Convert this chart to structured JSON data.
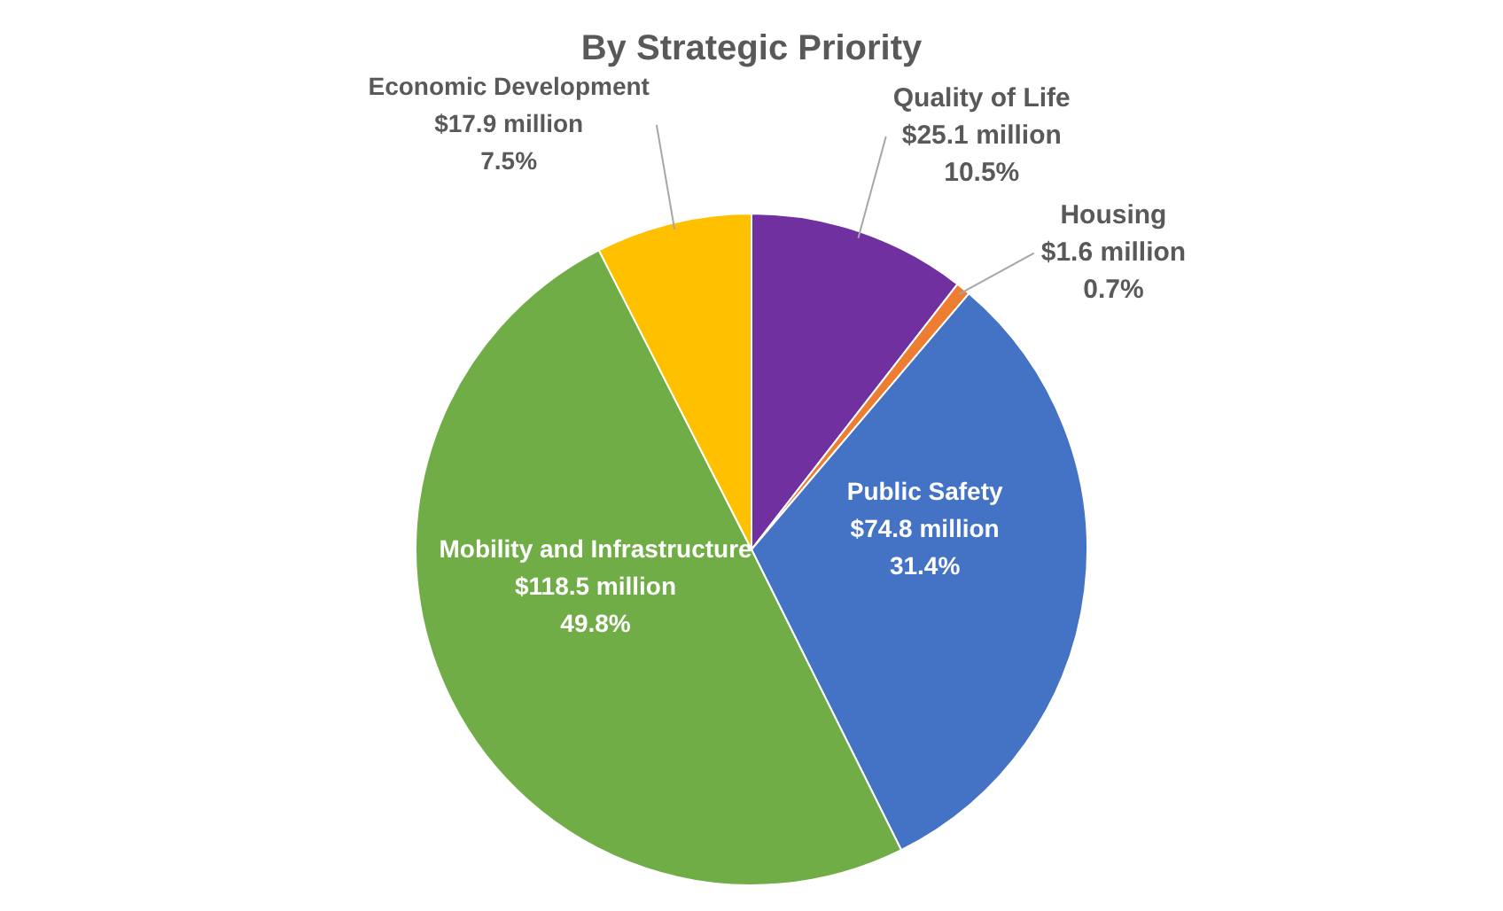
{
  "chart_data": {
    "type": "pie",
    "title": "By Strategic Priority",
    "categories": [
      "Quality of Life",
      "Housing",
      "Public Safety",
      "Mobility and Infrastructure",
      "Economic Development"
    ],
    "values": [
      10.5,
      0.7,
      31.4,
      49.8,
      7.5
    ],
    "value_labels": [
      "$25.1 million\n10.5%",
      "$1.6 million\n0.7%",
      "$74.8 million\n31.4%",
      "$118.5 million\n49.8%",
      "$17.9 million\n7.5%"
    ],
    "colors": [
      "#7030a0",
      "#ed7d31",
      "#4472c4",
      "#70ad47",
      "#ffc000"
    ],
    "legend": false
  }
}
